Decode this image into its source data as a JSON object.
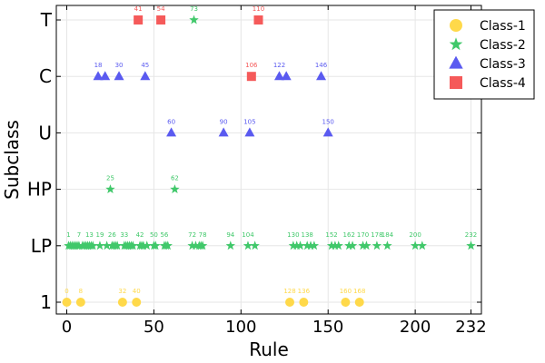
{
  "chart_data": {
    "type": "scatter",
    "title": "",
    "xlabel": "Rule",
    "ylabel": "Subclass",
    "xlim": [
      -6,
      238
    ],
    "x_ticks": [
      0,
      50,
      100,
      150,
      200,
      232
    ],
    "y_categories": [
      "1",
      "LP",
      "HP",
      "U",
      "C",
      "T"
    ],
    "grid": true,
    "legend_position": "top-right",
    "legend": [
      "Class-1",
      "Class-2",
      "Class-3",
      "Class-4"
    ],
    "series": [
      {
        "name": "Class-1",
        "color": "#FFD94A",
        "marker": "circle",
        "points": [
          {
            "x": 0,
            "y": "1"
          },
          {
            "x": 8,
            "y": "1"
          },
          {
            "x": 32,
            "y": "1"
          },
          {
            "x": 40,
            "y": "1"
          },
          {
            "x": 128,
            "y": "1"
          },
          {
            "x": 136,
            "y": "1"
          },
          {
            "x": 160,
            "y": "1"
          },
          {
            "x": 168,
            "y": "1"
          }
        ],
        "labels": [
          {
            "x": 0,
            "y": "1",
            "text": "0"
          },
          {
            "x": 8,
            "y": "1",
            "text": "8"
          },
          {
            "x": 32,
            "y": "1",
            "text": "32"
          },
          {
            "x": 40,
            "y": "1",
            "text": "40"
          },
          {
            "x": 128,
            "y": "1",
            "text": "128"
          },
          {
            "x": 136,
            "y": "1",
            "text": "136"
          },
          {
            "x": 160,
            "y": "1",
            "text": "160"
          },
          {
            "x": 168,
            "y": "1",
            "text": "168"
          }
        ]
      },
      {
        "name": "Class-2",
        "color": "#40C86A",
        "marker": "star",
        "points": [
          {
            "x": 1,
            "y": "LP"
          },
          {
            "x": 2,
            "y": "LP"
          },
          {
            "x": 3,
            "y": "LP"
          },
          {
            "x": 4,
            "y": "LP"
          },
          {
            "x": 5,
            "y": "LP"
          },
          {
            "x": 6,
            "y": "LP"
          },
          {
            "x": 7,
            "y": "LP"
          },
          {
            "x": 9,
            "y": "LP"
          },
          {
            "x": 10,
            "y": "LP"
          },
          {
            "x": 11,
            "y": "LP"
          },
          {
            "x": 12,
            "y": "LP"
          },
          {
            "x": 13,
            "y": "LP"
          },
          {
            "x": 14,
            "y": "LP"
          },
          {
            "x": 15,
            "y": "LP"
          },
          {
            "x": 19,
            "y": "LP"
          },
          {
            "x": 23,
            "y": "LP"
          },
          {
            "x": 26,
            "y": "LP"
          },
          {
            "x": 27,
            "y": "LP"
          },
          {
            "x": 28,
            "y": "LP"
          },
          {
            "x": 29,
            "y": "LP"
          },
          {
            "x": 33,
            "y": "LP"
          },
          {
            "x": 34,
            "y": "LP"
          },
          {
            "x": 35,
            "y": "LP"
          },
          {
            "x": 36,
            "y": "LP"
          },
          {
            "x": 37,
            "y": "LP"
          },
          {
            "x": 38,
            "y": "LP"
          },
          {
            "x": 42,
            "y": "LP"
          },
          {
            "x": 43,
            "y": "LP"
          },
          {
            "x": 44,
            "y": "LP"
          },
          {
            "x": 46,
            "y": "LP"
          },
          {
            "x": 50,
            "y": "LP"
          },
          {
            "x": 51,
            "y": "LP"
          },
          {
            "x": 56,
            "y": "LP"
          },
          {
            "x": 57,
            "y": "LP"
          },
          {
            "x": 58,
            "y": "LP"
          },
          {
            "x": 72,
            "y": "LP"
          },
          {
            "x": 74,
            "y": "LP"
          },
          {
            "x": 76,
            "y": "LP"
          },
          {
            "x": 77,
            "y": "LP"
          },
          {
            "x": 78,
            "y": "LP"
          },
          {
            "x": 94,
            "y": "LP"
          },
          {
            "x": 104,
            "y": "LP"
          },
          {
            "x": 108,
            "y": "LP"
          },
          {
            "x": 130,
            "y": "LP"
          },
          {
            "x": 132,
            "y": "LP"
          },
          {
            "x": 134,
            "y": "LP"
          },
          {
            "x": 138,
            "y": "LP"
          },
          {
            "x": 140,
            "y": "LP"
          },
          {
            "x": 142,
            "y": "LP"
          },
          {
            "x": 152,
            "y": "LP"
          },
          {
            "x": 154,
            "y": "LP"
          },
          {
            "x": 156,
            "y": "LP"
          },
          {
            "x": 162,
            "y": "LP"
          },
          {
            "x": 164,
            "y": "LP"
          },
          {
            "x": 170,
            "y": "LP"
          },
          {
            "x": 172,
            "y": "LP"
          },
          {
            "x": 178,
            "y": "LP"
          },
          {
            "x": 184,
            "y": "LP"
          },
          {
            "x": 200,
            "y": "LP"
          },
          {
            "x": 204,
            "y": "LP"
          },
          {
            "x": 232,
            "y": "LP"
          },
          {
            "x": 25,
            "y": "HP"
          },
          {
            "x": 62,
            "y": "HP"
          },
          {
            "x": 73,
            "y": "T"
          }
        ],
        "labels": [
          {
            "x": 1,
            "y": "LP",
            "text": "1"
          },
          {
            "x": 7,
            "y": "LP",
            "text": "7"
          },
          {
            "x": 13,
            "y": "LP",
            "text": "13"
          },
          {
            "x": 19,
            "y": "LP",
            "text": "19"
          },
          {
            "x": 26,
            "y": "LP",
            "text": "26"
          },
          {
            "x": 33,
            "y": "LP",
            "text": "33"
          },
          {
            "x": 42,
            "y": "LP",
            "text": "42"
          },
          {
            "x": 50,
            "y": "LP",
            "text": "50"
          },
          {
            "x": 56,
            "y": "LP",
            "text": "56"
          },
          {
            "x": 72,
            "y": "LP",
            "text": "72"
          },
          {
            "x": 78,
            "y": "LP",
            "text": "78"
          },
          {
            "x": 94,
            "y": "LP",
            "text": "94"
          },
          {
            "x": 104,
            "y": "LP",
            "text": "104"
          },
          {
            "x": 130,
            "y": "LP",
            "text": "130"
          },
          {
            "x": 138,
            "y": "LP",
            "text": "138"
          },
          {
            "x": 152,
            "y": "LP",
            "text": "152"
          },
          {
            "x": 162,
            "y": "LP",
            "text": "162"
          },
          {
            "x": 170,
            "y": "LP",
            "text": "170"
          },
          {
            "x": 178,
            "y": "LP",
            "text": "178"
          },
          {
            "x": 184,
            "y": "LP",
            "text": "184"
          },
          {
            "x": 200,
            "y": "LP",
            "text": "200"
          },
          {
            "x": 232,
            "y": "LP",
            "text": "232"
          },
          {
            "x": 25,
            "y": "HP",
            "text": "25"
          },
          {
            "x": 62,
            "y": "HP",
            "text": "62"
          },
          {
            "x": 73,
            "y": "T",
            "text": "73"
          }
        ]
      },
      {
        "name": "Class-3",
        "color": "#5A5AF0",
        "marker": "triangle",
        "points": [
          {
            "x": 18,
            "y": "C"
          },
          {
            "x": 22,
            "y": "C"
          },
          {
            "x": 30,
            "y": "C"
          },
          {
            "x": 45,
            "y": "C"
          },
          {
            "x": 122,
            "y": "C"
          },
          {
            "x": 126,
            "y": "C"
          },
          {
            "x": 146,
            "y": "C"
          },
          {
            "x": 60,
            "y": "U"
          },
          {
            "x": 90,
            "y": "U"
          },
          {
            "x": 105,
            "y": "U"
          },
          {
            "x": 150,
            "y": "U"
          }
        ],
        "labels": [
          {
            "x": 18,
            "y": "C",
            "text": "18"
          },
          {
            "x": 30,
            "y": "C",
            "text": "30"
          },
          {
            "x": 45,
            "y": "C",
            "text": "45"
          },
          {
            "x": 122,
            "y": "C",
            "text": "122"
          },
          {
            "x": 146,
            "y": "C",
            "text": "146"
          },
          {
            "x": 60,
            "y": "U",
            "text": "60"
          },
          {
            "x": 90,
            "y": "U",
            "text": "90"
          },
          {
            "x": 105,
            "y": "U",
            "text": "105"
          },
          {
            "x": 150,
            "y": "U",
            "text": "150"
          }
        ]
      },
      {
        "name": "Class-4",
        "color": "#F55A5A",
        "marker": "square",
        "points": [
          {
            "x": 41,
            "y": "T"
          },
          {
            "x": 54,
            "y": "T"
          },
          {
            "x": 110,
            "y": "T"
          },
          {
            "x": 106,
            "y": "C"
          }
        ],
        "labels": [
          {
            "x": 41,
            "y": "T",
            "text": "41"
          },
          {
            "x": 54,
            "y": "T",
            "text": "54"
          },
          {
            "x": 110,
            "y": "T",
            "text": "110"
          },
          {
            "x": 106,
            "y": "C",
            "text": "106"
          }
        ]
      }
    ]
  }
}
